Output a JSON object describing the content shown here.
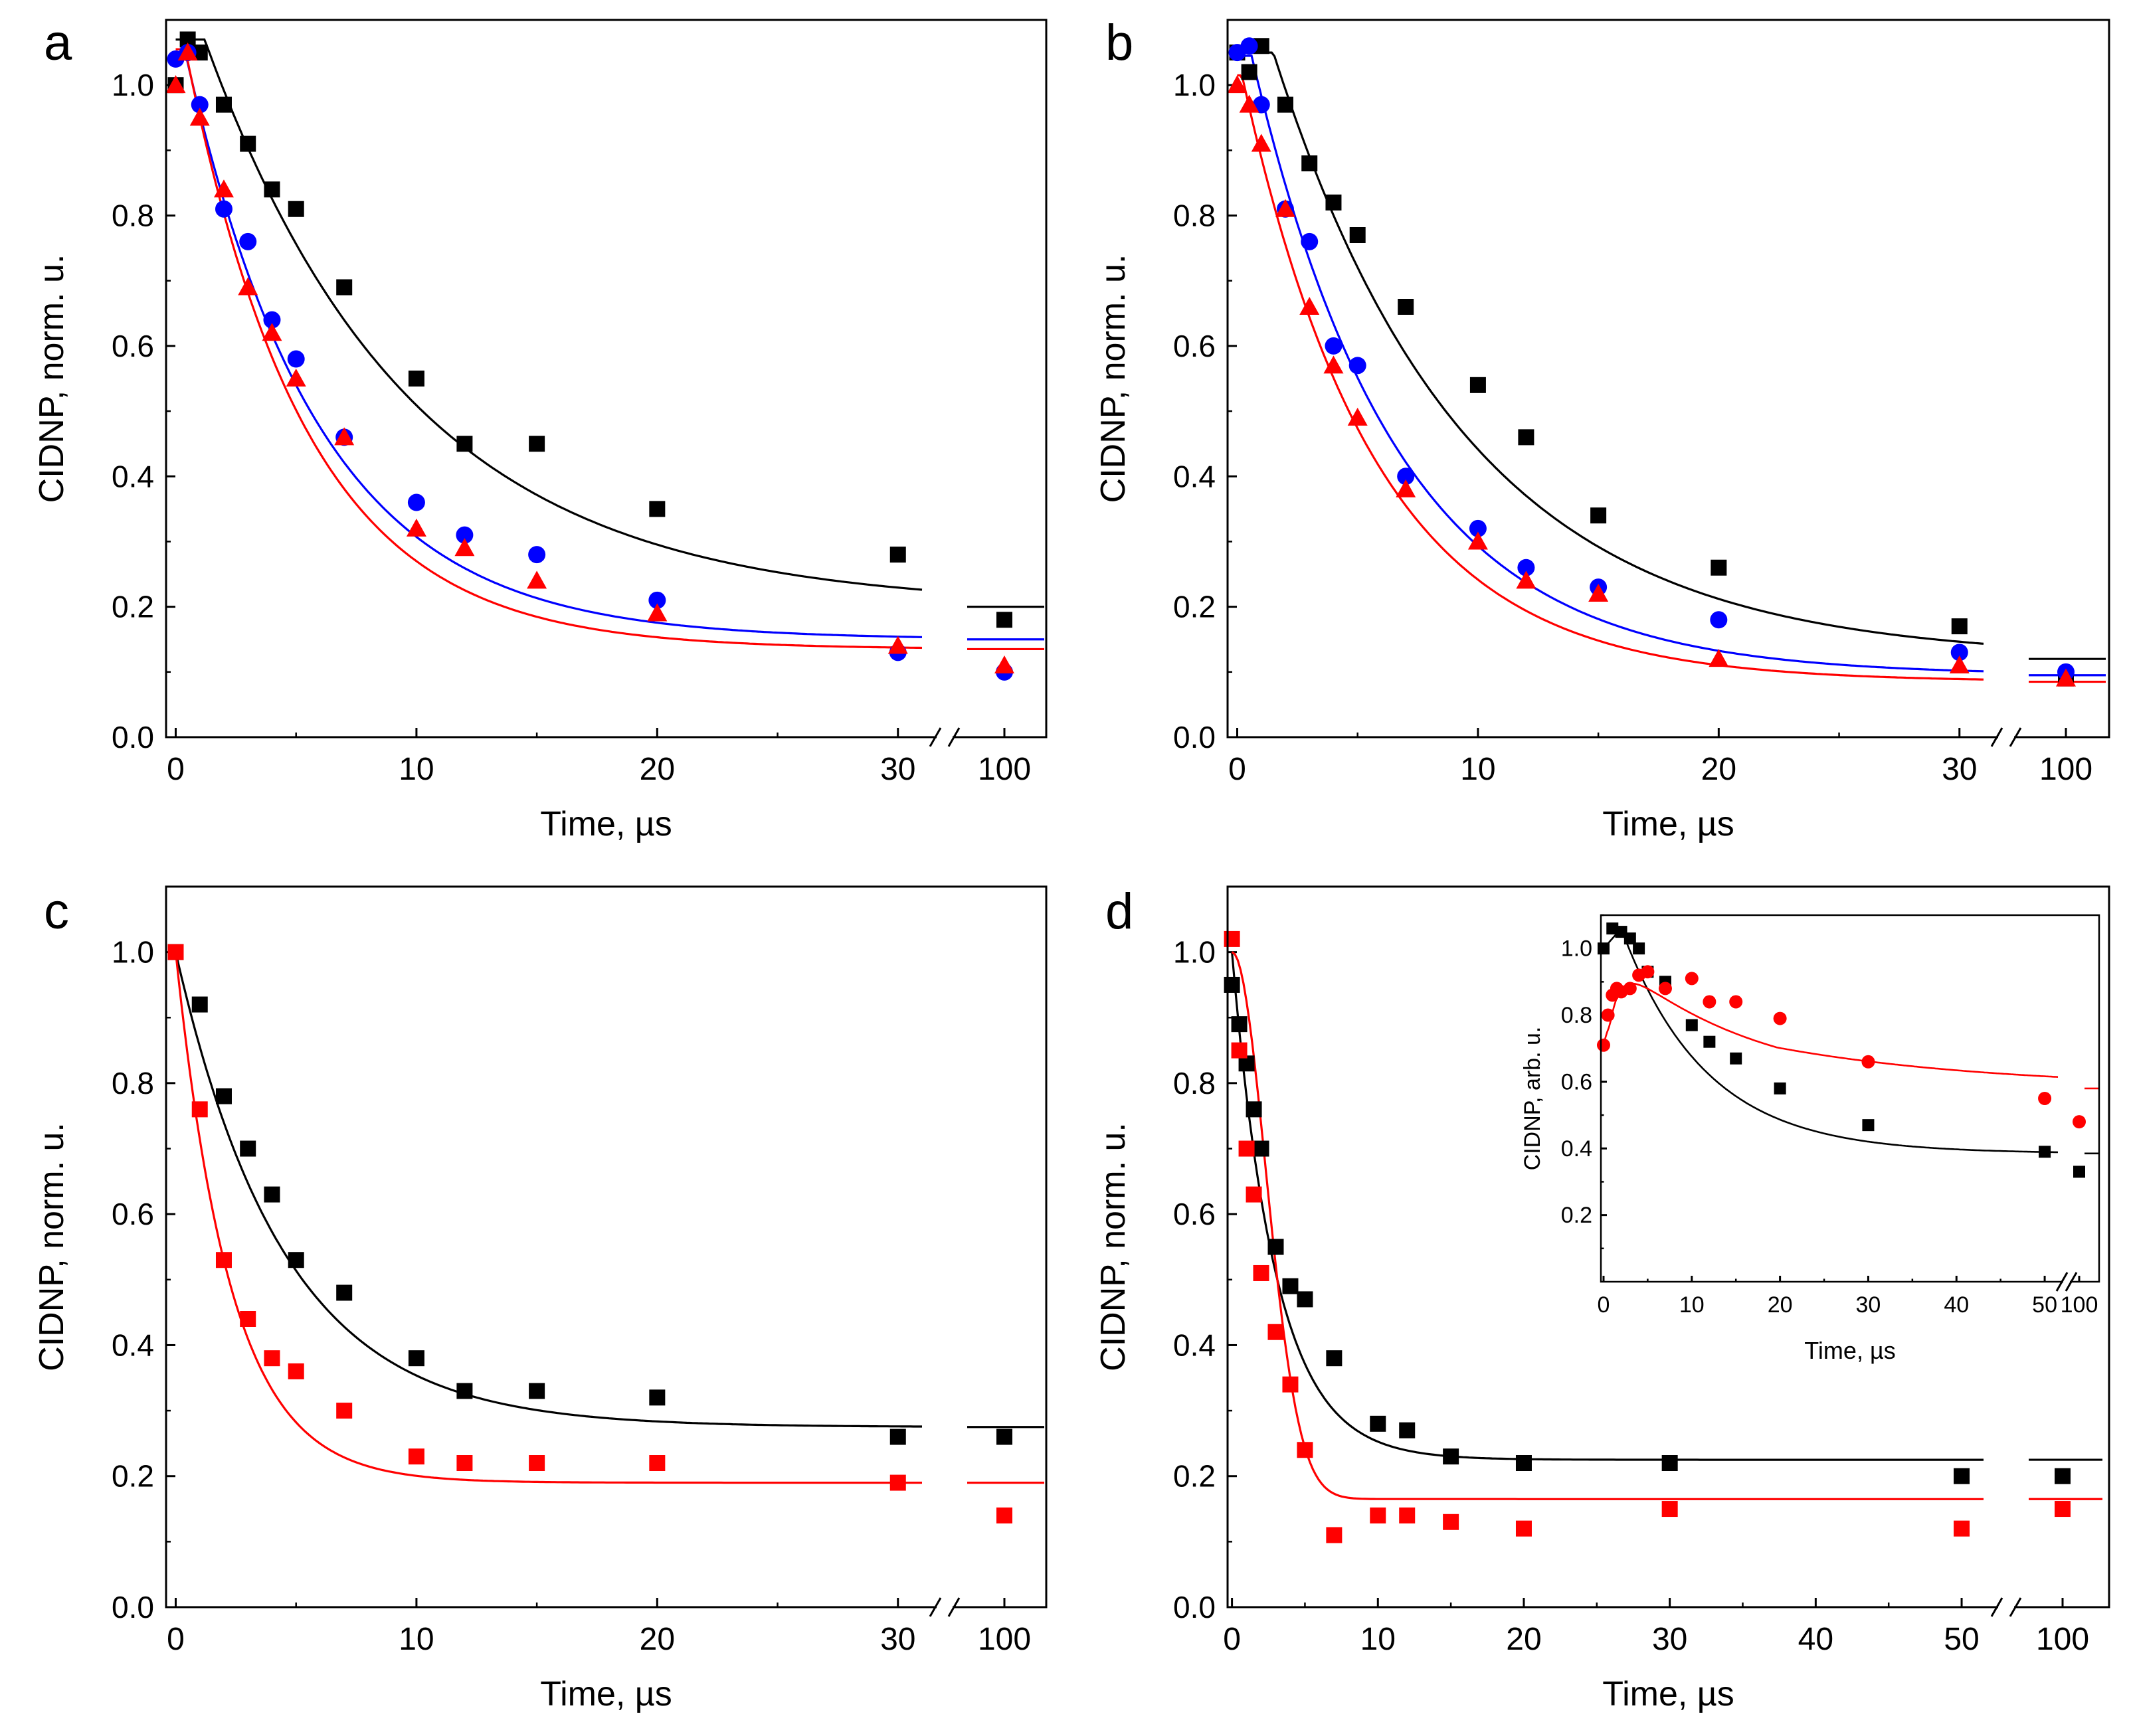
{
  "chart_data": [
    {
      "panel": "a",
      "type": "scatter",
      "xlabel": "Time, µs",
      "ylabel": "CIDNP, norm. u.",
      "ylim": [
        0,
        1.1
      ],
      "yticks": [
        "0.0",
        "0.2",
        "0.4",
        "0.6",
        "0.8",
        "1.0"
      ],
      "xticks_main": [
        "0",
        "10",
        "20",
        "30"
      ],
      "xticks_break": [
        "100"
      ],
      "xlim_main": [
        -0.4,
        31
      ],
      "break_value": 100,
      "series": [
        {
          "name": "black squares",
          "color": "#000000",
          "marker": "square",
          "x": [
            0,
            0.5,
            1,
            2,
            3,
            4,
            5,
            7,
            10,
            12,
            15,
            20,
            30,
            100
          ],
          "y": [
            1.0,
            1.07,
            1.05,
            0.97,
            0.91,
            0.84,
            0.81,
            0.69,
            0.55,
            0.45,
            0.45,
            0.35,
            0.28,
            0.18
          ],
          "fit": {
            "plateau": 0.2,
            "amp": 0.87,
            "tau": 8.5,
            "delay": 1.2
          }
        },
        {
          "name": "blue circles",
          "color": "#0000ff",
          "marker": "circle",
          "x": [
            0,
            0.5,
            1,
            2,
            3,
            4,
            5,
            7,
            10,
            12,
            15,
            20,
            30,
            100
          ],
          "y": [
            1.04,
            1.05,
            0.97,
            0.81,
            0.76,
            0.64,
            0.58,
            0.46,
            0.36,
            0.31,
            0.28,
            0.21,
            0.13,
            0.1
          ],
          "fit": {
            "plateau": 0.15,
            "amp": 0.9,
            "tau": 5.5,
            "delay": 0.4
          }
        },
        {
          "name": "red triangles",
          "color": "#ff0000",
          "marker": "triangle",
          "x": [
            0,
            0.5,
            1,
            2,
            3,
            4,
            5,
            7,
            10,
            12,
            15,
            20,
            30,
            100
          ],
          "y": [
            1.0,
            1.05,
            0.95,
            0.84,
            0.69,
            0.62,
            0.55,
            0.46,
            0.32,
            0.29,
            0.24,
            0.19,
            0.14,
            0.11
          ],
          "fit": {
            "plateau": 0.135,
            "amp": 0.92,
            "tau": 5.0,
            "delay": 0.4
          }
        }
      ]
    },
    {
      "panel": "b",
      "type": "scatter",
      "xlabel": "Time, µs",
      "ylabel": "CIDNP, norm. u.",
      "ylim": [
        0,
        1.1
      ],
      "yticks": [
        "0.0",
        "0.2",
        "0.4",
        "0.6",
        "0.8",
        "1.0"
      ],
      "xticks_main": [
        "0",
        "10",
        "20",
        "30"
      ],
      "xticks_break": [
        "100"
      ],
      "xlim_main": [
        -0.4,
        31
      ],
      "break_value": 100,
      "series": [
        {
          "name": "black squares",
          "color": "#000000",
          "marker": "square",
          "x": [
            0,
            0.5,
            1,
            2,
            3,
            4,
            5,
            7,
            10,
            12,
            15,
            20,
            30,
            100
          ],
          "y": [
            1.05,
            1.02,
            1.06,
            0.97,
            0.88,
            0.82,
            0.77,
            0.66,
            0.54,
            0.46,
            0.34,
            0.26,
            0.17,
            0.09
          ],
          "fit": {
            "plateau": 0.12,
            "amp": 0.93,
            "tau": 8.0,
            "delay": 1.5
          }
        },
        {
          "name": "blue circles",
          "color": "#0000ff",
          "marker": "circle",
          "x": [
            0,
            0.5,
            1,
            2,
            3,
            4,
            5,
            7,
            10,
            12,
            15,
            20,
            30,
            100
          ],
          "y": [
            1.05,
            1.06,
            0.97,
            0.81,
            0.76,
            0.6,
            0.57,
            0.4,
            0.32,
            0.26,
            0.23,
            0.18,
            0.13,
            0.1
          ],
          "fit": {
            "plateau": 0.095,
            "amp": 0.95,
            "tau": 6.0,
            "delay": 0.6
          }
        },
        {
          "name": "red triangles",
          "color": "#ff0000",
          "marker": "triangle",
          "x": [
            0,
            0.5,
            1,
            2,
            3,
            4,
            5,
            7,
            10,
            12,
            15,
            20,
            30,
            100
          ],
          "y": [
            1.0,
            0.97,
            0.91,
            0.81,
            0.66,
            0.57,
            0.49,
            0.38,
            0.3,
            0.24,
            0.22,
            0.12,
            0.11,
            0.09
          ],
          "fit": {
            "plateau": 0.085,
            "amp": 0.93,
            "tau": 5.5,
            "delay": 0.2
          }
        }
      ]
    },
    {
      "panel": "c",
      "type": "scatter",
      "xlabel": "Time, µs",
      "ylabel": "CIDNP, norm. u.",
      "ylim": [
        0,
        1.1
      ],
      "yticks": [
        "0.0",
        "0.2",
        "0.4",
        "0.6",
        "0.8",
        "1.0"
      ],
      "xticks_main": [
        "0",
        "10",
        "20",
        "30"
      ],
      "xticks_break": [
        "100"
      ],
      "xlim_main": [
        -0.4,
        31
      ],
      "break_value": 100,
      "series": [
        {
          "name": "black squares",
          "color": "#000000",
          "marker": "square",
          "x": [
            0,
            1,
            2,
            3,
            4,
            5,
            7,
            10,
            12,
            15,
            20,
            30,
            100
          ],
          "y": [
            1.0,
            0.92,
            0.78,
            0.7,
            0.63,
            0.53,
            0.48,
            0.38,
            0.33,
            0.33,
            0.32,
            0.26,
            0.26
          ],
          "fit": {
            "plateau": 0.275,
            "amp": 0.725,
            "tau": 4.5,
            "delay": 0
          }
        },
        {
          "name": "red squares",
          "color": "#ff0000",
          "marker": "square",
          "x": [
            0,
            1,
            2,
            3,
            4,
            5,
            7,
            10,
            12,
            15,
            20,
            30,
            100
          ],
          "y": [
            1.0,
            0.76,
            0.53,
            0.44,
            0.38,
            0.36,
            0.3,
            0.23,
            0.22,
            0.22,
            0.22,
            0.19,
            0.14
          ],
          "fit": {
            "plateau": 0.19,
            "amp": 0.81,
            "tau": 2.3,
            "delay": 0
          }
        }
      ]
    },
    {
      "panel": "d",
      "type": "scatter",
      "xlabel": "Time, µs",
      "ylabel": "CIDNP, norm. u.",
      "ylim": [
        0,
        1.1
      ],
      "yticks": [
        "0.0",
        "0.2",
        "0.4",
        "0.6",
        "0.8",
        "1.0"
      ],
      "xticks_main": [
        "0",
        "10",
        "20",
        "30",
        "40",
        "50"
      ],
      "xticks_break": [
        "100"
      ],
      "xlim_main": [
        -0.3,
        51.5
      ],
      "break_value": 100,
      "series": [
        {
          "name": "black squares",
          "color": "#000000",
          "marker": "square",
          "x": [
            0,
            0.5,
            1,
            1.5,
            2,
            3,
            4,
            5,
            7,
            10,
            12,
            15,
            20,
            30,
            50,
            100
          ],
          "y": [
            0.95,
            0.89,
            0.83,
            0.76,
            0.7,
            0.55,
            0.49,
            0.47,
            0.38,
            0.28,
            0.27,
            0.23,
            0.22,
            0.22,
            0.2,
            0.2
          ],
          "fit": {
            "type": "exp",
            "plateau": 0.225,
            "amp": 0.775,
            "tau": 3.0,
            "delay": 0
          }
        },
        {
          "name": "red squares",
          "color": "#ff0000",
          "marker": "square",
          "x": [
            0,
            0.5,
            1,
            1.5,
            2,
            3,
            4,
            5,
            7,
            10,
            12,
            15,
            20,
            30,
            50,
            100
          ],
          "y": [
            1.02,
            0.85,
            0.7,
            0.63,
            0.51,
            0.42,
            0.34,
            0.24,
            0.11,
            0.14,
            0.14,
            0.13,
            0.12,
            0.15,
            0.12,
            0.15
          ],
          "fit": {
            "type": "gauss",
            "plateau": 0.165,
            "amp": 0.835,
            "sigma": 2.3
          }
        }
      ],
      "inset": {
        "xlabel": "Time, µs",
        "ylabel": "CIDNP, arb. u.",
        "ylim": [
          0,
          1.1
        ],
        "yticks": [
          "0.2",
          "0.4",
          "0.6",
          "0.8",
          "1.0"
        ],
        "xticks_main": [
          "0",
          "10",
          "20",
          "30",
          "40",
          "50"
        ],
        "xticks_break": [
          "100"
        ],
        "xlim_main": [
          -0.3,
          51.5
        ],
        "break_value": 100,
        "series": [
          {
            "name": "black squares",
            "color": "#000000",
            "marker": "square",
            "x": [
              0,
              1,
              2,
              3,
              4,
              5,
              7,
              10,
              12,
              15,
              20,
              30,
              50,
              100
            ],
            "y": [
              1.0,
              1.06,
              1.05,
              1.03,
              1.0,
              0.93,
              0.9,
              0.77,
              0.72,
              0.67,
              0.58,
              0.47,
              0.39,
              0.33
            ],
            "fit": {
              "type": "riseDecayBlack",
              "plateau": 0.385,
              "amp": 0.7,
              "tau": 9.5
            }
          },
          {
            "name": "red circles",
            "color": "#ff0000",
            "marker": "circle",
            "x": [
              0,
              0.5,
              1,
              1.5,
              2,
              3,
              4,
              5,
              7,
              10,
              12,
              15,
              20,
              30,
              50,
              100
            ],
            "y": [
              0.71,
              0.8,
              0.86,
              0.88,
              0.87,
              0.88,
              0.92,
              0.93,
              0.88,
              0.91,
              0.84,
              0.84,
              0.79,
              0.66,
              0.55,
              0.48
            ],
            "fit": {
              "type": "riseDecayRed",
              "plateau": 0.53,
              "amp": 0.42,
              "tau": 16
            }
          }
        ]
      }
    }
  ]
}
